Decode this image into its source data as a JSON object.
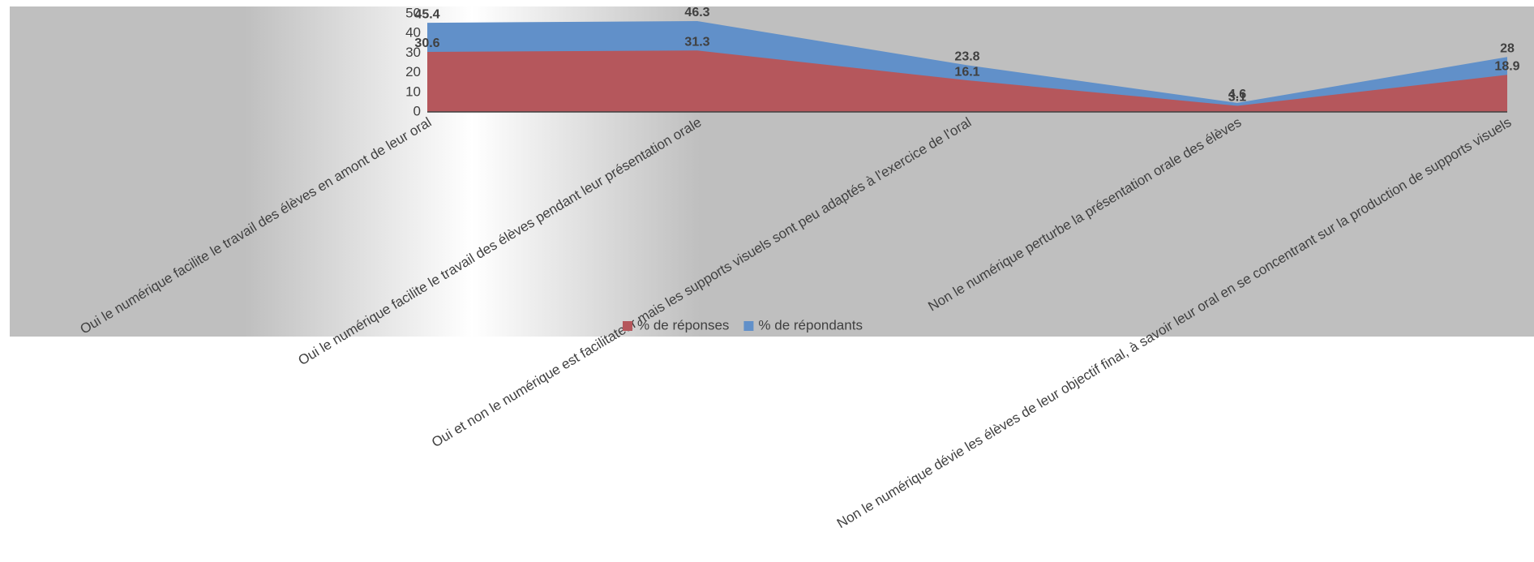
{
  "chart_data": {
    "type": "area",
    "categories": [
      "Oui le numérique facilite le travail des élèves en amont de leur oral",
      "Oui le numérique facilite le travail des élèves pendant leur présentation orale",
      "Oui et non le numérique est facilitateur mais les supports visuels sont peu adaptés à l'exercice de l'oral",
      "Non le numérique perturbe la présentation orale des élèves",
      "Non le numérique dévie les élèves de leur objectif final, à savoir leur oral en se concentrant sur la production de supports visuels"
    ],
    "series": [
      {
        "name": "% de réponses",
        "color": "#b5575c",
        "values": [
          30.6,
          31.3,
          16.1,
          3.1,
          18.9
        ]
      },
      {
        "name": "% de répondants",
        "color": "#6190c9",
        "values": [
          45.4,
          46.3,
          23.8,
          4.6,
          28
        ]
      }
    ],
    "ylim": [
      0,
      50
    ],
    "yticks": [
      0,
      10,
      20,
      30,
      40,
      50
    ],
    "legend": "bottom"
  }
}
